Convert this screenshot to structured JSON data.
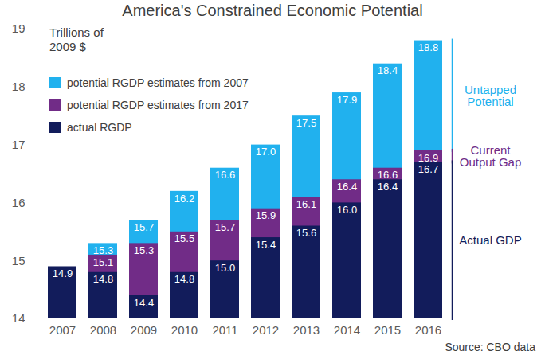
{
  "chart_data": {
    "type": "bar",
    "title": "America's Constrained Economic Potential",
    "subtitle": "Trillions of 2009 $",
    "source": "Source: CBO data",
    "categories": [
      "2007",
      "2008",
      "2009",
      "2010",
      "2011",
      "2012",
      "2013",
      "2014",
      "2015",
      "2016"
    ],
    "series": [
      {
        "name": "potential RGDP estimates from 2007",
        "color": "#21b1ee",
        "values": [
          null,
          15.3,
          15.7,
          16.2,
          16.6,
          17.0,
          17.5,
          17.9,
          18.4,
          18.8
        ],
        "value_labels": [
          null,
          "15.3",
          "15.7",
          "16.2",
          "16.6",
          "17.0",
          "17.5",
          "17.9",
          "18.4",
          "18.8"
        ]
      },
      {
        "name": "potential RGDP estimates from 2017",
        "color": "#712c87",
        "values": [
          null,
          15.1,
          15.3,
          15.5,
          15.7,
          15.9,
          16.1,
          16.4,
          16.6,
          16.9
        ],
        "value_labels": [
          null,
          "15.1",
          "15.3",
          "15.5",
          "15.7",
          "15.9",
          "16.1",
          "16.4",
          "16.6",
          "16.9"
        ]
      },
      {
        "name": "actual RGDP",
        "color": "#121c5b",
        "values": [
          14.9,
          14.8,
          14.4,
          14.8,
          15.0,
          15.4,
          15.6,
          16.0,
          16.4,
          16.7
        ],
        "value_labels": [
          "14.9",
          "14.8",
          "14.4",
          "14.8",
          "15.0",
          "15.4",
          "15.6",
          "16.0",
          "16.4",
          "16.7"
        ]
      }
    ],
    "ylim": [
      14,
      19
    ],
    "yticks": [
      14,
      15,
      16,
      17,
      18,
      19
    ],
    "stacked": false,
    "data_labels": true,
    "grid": false,
    "legend": "top-left",
    "annotations": [
      "Untapped Potential",
      "Current Output Gap",
      "Actual GDP"
    ]
  }
}
